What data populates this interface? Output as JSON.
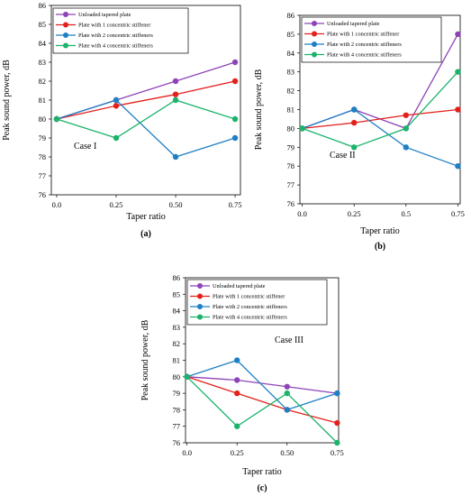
{
  "chart_data": [
    {
      "type": "line",
      "panel_label": "(a)",
      "annotation": "Case I",
      "xlabel": "Taper ratio",
      "ylabel": "Peak sound power, dB",
      "x": [
        0.0,
        0.25,
        0.5,
        0.75
      ],
      "x_tick_labels": [
        "0.0",
        "0.25",
        "0.50",
        "0.75"
      ],
      "ylim": [
        76,
        86
      ],
      "y_ticks": [
        76,
        77,
        78,
        79,
        80,
        81,
        82,
        83,
        84,
        85,
        86
      ],
      "grid": false,
      "legend_position": "top-left",
      "series": [
        {
          "name": "Unloaded tapered plate",
          "color": "#8e44b8",
          "values": [
            80,
            81,
            82,
            83
          ]
        },
        {
          "name": "Plate with 1 concentric stiffener",
          "color": "#e3211c",
          "values": [
            80,
            80.7,
            81.3,
            82
          ]
        },
        {
          "name": "Plate with 2 concentric stiffeners",
          "color": "#1f7fc4",
          "values": [
            80,
            81,
            78,
            79
          ]
        },
        {
          "name": "Plate with 4 concentric stiffeners",
          "color": "#1ab36a",
          "values": [
            80,
            79,
            81,
            80
          ]
        }
      ]
    },
    {
      "type": "line",
      "panel_label": "(b)",
      "annotation": "Case II",
      "xlabel": "Taper ratio",
      "ylabel": "Peak sound power, dB",
      "x": [
        0.0,
        0.25,
        0.5,
        0.75
      ],
      "x_tick_labels": [
        "0.0",
        "0.25",
        "0.5",
        "0.75"
      ],
      "ylim": [
        76,
        86
      ],
      "y_ticks": [
        76,
        77,
        78,
        79,
        80,
        81,
        82,
        83,
        84,
        85,
        86
      ],
      "grid": false,
      "legend_position": "top-left",
      "series": [
        {
          "name": "Unloaded tapered plate",
          "color": "#8e44b8",
          "values": [
            80,
            81,
            80,
            85
          ]
        },
        {
          "name": "Plate with 1 concentric stiffener",
          "color": "#e3211c",
          "values": [
            80,
            80.3,
            80.7,
            81
          ]
        },
        {
          "name": "Plate with 2 concentric stiffeners",
          "color": "#1f7fc4",
          "values": [
            80,
            81,
            79,
            78
          ]
        },
        {
          "name": "Plate with 4 concentric stiffeners",
          "color": "#1ab36a",
          "values": [
            80,
            79,
            80,
            83
          ]
        }
      ]
    },
    {
      "type": "line",
      "panel_label": "(c)",
      "annotation": "Case III",
      "xlabel": "Taper ratio",
      "ylabel": "Peak sound power, dB",
      "x": [
        0.0,
        0.25,
        0.5,
        0.75
      ],
      "x_tick_labels": [
        "0.0",
        "0.25",
        "0.50",
        "0.75"
      ],
      "ylim": [
        76,
        86
      ],
      "y_ticks": [
        76,
        77,
        78,
        79,
        80,
        81,
        82,
        83,
        84,
        85,
        86
      ],
      "grid": false,
      "legend_position": "top-left",
      "series": [
        {
          "name": "Unloaded tapered plate",
          "color": "#8e44b8",
          "values": [
            80,
            79.8,
            79.4,
            79
          ]
        },
        {
          "name": "Plate with 1 concentric stiffener",
          "color": "#e3211c",
          "values": [
            80,
            79,
            78,
            77.2
          ]
        },
        {
          "name": "Plate with 2 concentric stiffeners",
          "color": "#1f7fc4",
          "values": [
            80,
            81,
            78,
            79
          ]
        },
        {
          "name": "Plate with 4 concentric stiffeners",
          "color": "#1ab36a",
          "values": [
            80,
            77,
            79,
            76
          ]
        }
      ]
    }
  ]
}
